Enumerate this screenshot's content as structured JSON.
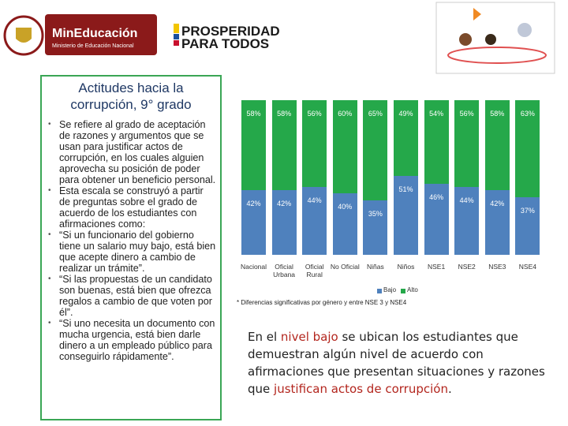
{
  "header": {
    "ministry": "MinEducación",
    "ministry_sub": "Ministerio de Educación Nacional",
    "slogan_1": "PROSPERIDAD",
    "slogan_2": "PARA TODOS"
  },
  "left_box": {
    "title": "Actitudes hacia la corrupción, 9° grado",
    "bullets": [
      "Se refiere al grado de aceptación de razones y argumentos que se usan para justificar actos de corrupción, en los cuales alguien aprovecha su posición de poder para obtener un beneficio personal.",
      "Esta escala se construyó a partir de preguntas sobre el grado de acuerdo de los estudiantes con afirmaciones como:",
      "“Si un funcionario del gobierno tiene un salario muy bajo, está bien que acepte dinero a cambio de realizar un trámite”.",
      "“Si las propuestas de un candidato son buenas, está bien que ofrezca regalos a cambio de que voten por él”.",
      "“Si uno necesita un documento con mucha urgencia, está bien darle dinero a un empleado público para conseguirlo rápidamente”."
    ]
  },
  "chart_data": {
    "type": "stacked_bar",
    "categories": [
      "Nacional",
      "Oficial Urbana",
      "Oficial Rural",
      "No Oficial",
      "Niñas",
      "Niños",
      "NSE1",
      "NSE2",
      "NSE3",
      "NSE4"
    ],
    "series": [
      {
        "name": "Bajo",
        "color": "#4f81bd",
        "values": [
          42,
          42,
          44,
          40,
          35,
          51,
          46,
          44,
          42,
          37
        ],
        "value_labels": [
          "42%",
          "42%",
          "44%",
          "40%",
          "35%",
          "51%",
          "46%",
          "44%",
          "42%",
          "37%"
        ]
      },
      {
        "name": "Alto",
        "color": "#25a84a",
        "values": [
          58,
          58,
          56,
          60,
          65,
          49,
          54,
          56,
          58,
          63
        ],
        "value_labels": [
          "58%",
          "58%",
          "56%",
          "60%",
          "65%",
          "49%",
          "54%",
          "56%",
          "58%",
          "63%"
        ]
      }
    ],
    "ylim": [
      0,
      100
    ],
    "legend": "bottom",
    "footnote": "* Diferencias significativas por género y entre NSE 3  y NSE4"
  },
  "paragraph": [
    "En el ",
    "nivel bajo",
    " se ubican los estudiantes que demuestran algún nivel de acuerdo con afirmaciones que presentan situaciones y razones que ",
    "justifican actos de corrupción",
    "."
  ]
}
